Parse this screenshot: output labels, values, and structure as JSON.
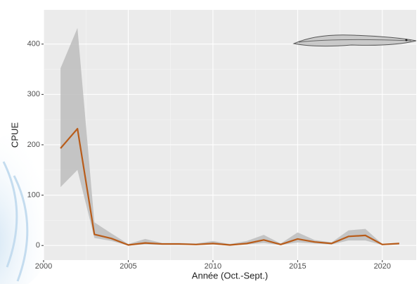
{
  "chart_data": {
    "type": "line",
    "x_label": "Année (Oct.-Sept.)",
    "y_label": "CPUE",
    "x": [
      2001,
      2002,
      2003,
      2004,
      2005,
      2006,
      2007,
      2008,
      2009,
      2010,
      2011,
      2012,
      2013,
      2014,
      2015,
      2016,
      2017,
      2018,
      2019,
      2020,
      2021
    ],
    "series": [
      {
        "color": "#b85c1a",
        "values": [
          193,
          232,
          22,
          14,
          1,
          5,
          3,
          3,
          2,
          4,
          1,
          4,
          11,
          2,
          13,
          7,
          4,
          18,
          20,
          2,
          4
        ]
      }
    ],
    "band": {
      "color": "#bdbdbd",
      "upper": [
        352,
        432,
        46,
        24,
        3,
        13,
        5,
        5,
        4,
        9,
        3,
        9,
        21,
        4,
        26,
        11,
        6,
        30,
        33,
        3,
        5
      ],
      "lower": [
        116,
        150,
        15,
        9,
        0,
        2,
        1,
        1,
        1,
        2,
        0,
        2,
        5,
        1,
        6,
        4,
        2,
        10,
        10,
        1,
        2
      ]
    },
    "xlim": [
      2000,
      2022
    ],
    "xticks": [
      2000,
      2005,
      2010,
      2015,
      2020
    ],
    "ylim": [
      -29,
      468
    ],
    "yticks": [
      0,
      100,
      200,
      300,
      400
    ],
    "grid": true
  }
}
